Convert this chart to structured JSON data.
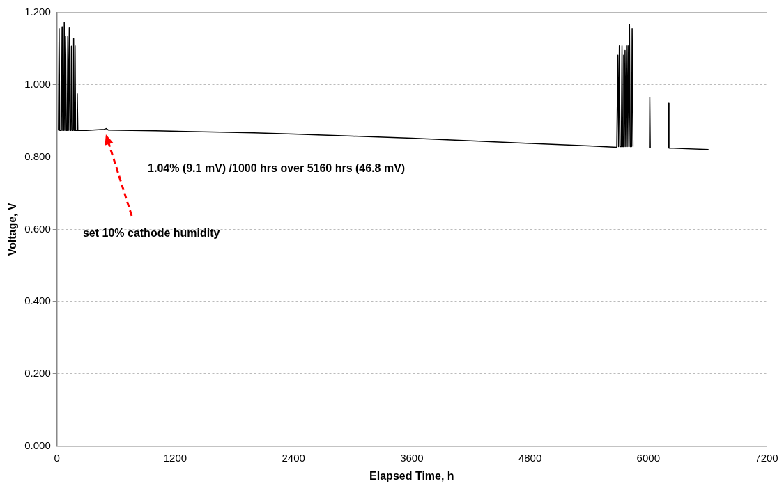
{
  "chart_data": {
    "type": "line",
    "xlabel": "Elapsed Time, h",
    "ylabel": "Voltage, V",
    "xlim": [
      0,
      7200
    ],
    "xticks": [
      0,
      1200,
      2400,
      3600,
      4800,
      6000,
      7200
    ],
    "ylim": [
      0,
      1.2
    ],
    "yticks": [
      {
        "value": 0,
        "label": "0.000"
      },
      {
        "value": 0.2,
        "label": "0.200"
      },
      {
        "value": 0.4,
        "label": "0.400"
      },
      {
        "value": 0.6,
        "label": "0.600"
      },
      {
        "value": 0.8,
        "label": "0.800"
      },
      {
        "value": 1.0,
        "label": "1.000"
      },
      {
        "value": 1.2,
        "label": "1.200"
      }
    ],
    "grid": "y",
    "legend": false,
    "marker": "none",
    "line_style": "solid",
    "series": [
      {
        "color": "#000000",
        "x": [
          15,
          22,
          28,
          45,
          52,
          58,
          68,
          74,
          80,
          84,
          88,
          94,
          104,
          110,
          116,
          120,
          125,
          131,
          141,
          147,
          153,
          164,
          169,
          175,
          180,
          184,
          189,
          200,
          206,
          212,
          300,
          480,
          500,
          520,
          1000,
          2000,
          2400,
          3000,
          3600,
          4200,
          4800,
          5400,
          5680,
          5691,
          5698,
          5706,
          5713,
          5726,
          5733,
          5740,
          5744,
          5750,
          5757,
          5764,
          5771,
          5779,
          5786,
          5794,
          5802,
          5809,
          5816,
          5830,
          5836,
          5845,
          5900,
          6012,
          6015,
          6020,
          6100,
          6203,
          6206,
          6210,
          6611
        ],
        "values": [
          0.874,
          1.156,
          0.874,
          0.874,
          1.159,
          0.874,
          0.874,
          1.173,
          0.874,
          0.874,
          1.134,
          0.874,
          0.874,
          1.134,
          0.874,
          0.874,
          1.158,
          0.874,
          0.874,
          1.107,
          0.874,
          0.874,
          1.128,
          0.874,
          0.874,
          1.108,
          0.874,
          0.874,
          0.975,
          0.874,
          0.874,
          0.877,
          0.879,
          0.875,
          0.873,
          0.867,
          0.864,
          0.858,
          0.852,
          0.845,
          0.838,
          0.831,
          0.827,
          1.082,
          0.829,
          1.108,
          0.829,
          0.829,
          1.108,
          0.829,
          0.829,
          1.082,
          0.829,
          1.095,
          0.829,
          1.108,
          0.829,
          1.108,
          0.829,
          1.167,
          0.829,
          0.829,
          1.156,
          0.829,
          null,
          0.826,
          0.966,
          0.826,
          null,
          0.825,
          0.949,
          0.825,
          0.821
        ]
      }
    ],
    "annotations": [
      "1.04% (9.1 mV) /1000 hrs over 5160 hrs (46.8 mV)",
      "set 10% cathode humidity"
    ]
  }
}
